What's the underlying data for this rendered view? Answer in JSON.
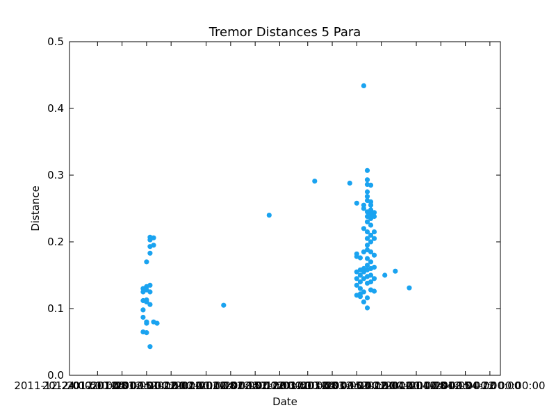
{
  "chart_data": {
    "type": "scatter",
    "title": "Tremor Distances 5 Para",
    "xlabel": "Date",
    "ylabel": "Distance",
    "ylim": [
      0,
      0.5
    ],
    "xlim": [
      "2011-12-24",
      "2012-04-25"
    ],
    "y_ticks": [
      "0.0",
      "0.1",
      "0.2",
      "0.3",
      "0.4",
      "0.5"
    ],
    "x_tick_labels": [
      "2011-12-24 00:00:00",
      "2012-01-01 00:00:00",
      "2012-01-08 00:00:00",
      "2012-01-15 00:00:00",
      "2012-01-22 00:00:00",
      "2012-02-01 00:00:00",
      "2012-02-08 00:00:00",
      "2012-02-15 00:00:00",
      "2012-02-22 00:00:00",
      "2012-03-01 00:00:00",
      "2012-03-08 00:00:00",
      "2012-03-15 00:00:00",
      "2012-03-22 00:00:00",
      "2012-04-01 00:00:00",
      "2012-04-08 00:00:00",
      "2012-04-15 00:00:00",
      "2012-04-22 00:00:00"
    ],
    "x_tick_dates": [
      "2011-12-24",
      "2012-01-01",
      "2012-01-08",
      "2012-01-15",
      "2012-01-22",
      "2012-02-01",
      "2012-02-08",
      "2012-02-15",
      "2012-02-22",
      "2012-03-01",
      "2012-03-08",
      "2012-03-15",
      "2012-03-22",
      "2012-04-01",
      "2012-04-08",
      "2012-04-15",
      "2012-04-22"
    ],
    "grid": false,
    "series": [
      {
        "color": "#1aa3f0",
        "points": [
          {
            "x": "2012-01-14",
            "y": 0.065
          },
          {
            "x": "2012-01-14",
            "y": 0.098
          },
          {
            "x": "2012-01-14",
            "y": 0.087
          },
          {
            "x": "2012-01-14",
            "y": 0.112
          },
          {
            "x": "2012-01-14",
            "y": 0.13
          },
          {
            "x": "2012-01-14",
            "y": 0.125
          },
          {
            "x": "2012-01-15",
            "y": 0.064
          },
          {
            "x": "2012-01-15",
            "y": 0.078
          },
          {
            "x": "2012-01-15",
            "y": 0.08
          },
          {
            "x": "2012-01-15",
            "y": 0.11
          },
          {
            "x": "2012-01-15",
            "y": 0.113
          },
          {
            "x": "2012-01-15",
            "y": 0.133
          },
          {
            "x": "2012-01-15",
            "y": 0.128
          },
          {
            "x": "2012-01-15",
            "y": 0.17
          },
          {
            "x": "2012-01-16",
            "y": 0.106
          },
          {
            "x": "2012-01-16",
            "y": 0.125
          },
          {
            "x": "2012-01-16",
            "y": 0.135
          },
          {
            "x": "2012-01-16",
            "y": 0.193
          },
          {
            "x": "2012-01-16",
            "y": 0.183
          },
          {
            "x": "2012-01-16",
            "y": 0.203
          },
          {
            "x": "2012-01-16",
            "y": 0.207
          },
          {
            "x": "2012-01-16",
            "y": 0.043
          },
          {
            "x": "2012-01-17",
            "y": 0.08
          },
          {
            "x": "2012-01-17",
            "y": 0.195
          },
          {
            "x": "2012-01-17",
            "y": 0.206
          },
          {
            "x": "2012-01-18",
            "y": 0.078
          },
          {
            "x": "2012-02-06",
            "y": 0.105
          },
          {
            "x": "2012-02-19",
            "y": 0.24
          },
          {
            "x": "2012-03-03",
            "y": 0.291
          },
          {
            "x": "2012-03-13",
            "y": 0.288
          },
          {
            "x": "2012-03-15",
            "y": 0.258
          },
          {
            "x": "2012-03-15",
            "y": 0.178
          },
          {
            "x": "2012-03-15",
            "y": 0.182
          },
          {
            "x": "2012-03-15",
            "y": 0.155
          },
          {
            "x": "2012-03-15",
            "y": 0.145
          },
          {
            "x": "2012-03-15",
            "y": 0.135
          },
          {
            "x": "2012-03-15",
            "y": 0.12
          },
          {
            "x": "2012-03-16",
            "y": 0.176
          },
          {
            "x": "2012-03-16",
            "y": 0.15
          },
          {
            "x": "2012-03-16",
            "y": 0.14
          },
          {
            "x": "2012-03-16",
            "y": 0.13
          },
          {
            "x": "2012-03-16",
            "y": 0.118
          },
          {
            "x": "2012-03-16",
            "y": 0.122
          },
          {
            "x": "2012-03-16",
            "y": 0.158
          },
          {
            "x": "2012-03-17",
            "y": 0.434
          },
          {
            "x": "2012-03-17",
            "y": 0.11
          },
          {
            "x": "2012-03-17",
            "y": 0.125
          },
          {
            "x": "2012-03-17",
            "y": 0.145
          },
          {
            "x": "2012-03-17",
            "y": 0.16
          },
          {
            "x": "2012-03-17",
            "y": 0.185
          },
          {
            "x": "2012-03-17",
            "y": 0.22
          },
          {
            "x": "2012-03-17",
            "y": 0.25
          },
          {
            "x": "2012-03-17",
            "y": 0.255
          },
          {
            "x": "2012-03-17",
            "y": 0.155
          },
          {
            "x": "2012-03-18",
            "y": 0.307
          },
          {
            "x": "2012-03-18",
            "y": 0.293
          },
          {
            "x": "2012-03-18",
            "y": 0.286
          },
          {
            "x": "2012-03-18",
            "y": 0.275
          },
          {
            "x": "2012-03-18",
            "y": 0.268
          },
          {
            "x": "2012-03-18",
            "y": 0.262
          },
          {
            "x": "2012-03-18",
            "y": 0.245
          },
          {
            "x": "2012-03-18",
            "y": 0.238
          },
          {
            "x": "2012-03-18",
            "y": 0.23
          },
          {
            "x": "2012-03-18",
            "y": 0.215
          },
          {
            "x": "2012-03-18",
            "y": 0.205
          },
          {
            "x": "2012-03-18",
            "y": 0.195
          },
          {
            "x": "2012-03-18",
            "y": 0.188
          },
          {
            "x": "2012-03-18",
            "y": 0.175
          },
          {
            "x": "2012-03-18",
            "y": 0.165
          },
          {
            "x": "2012-03-18",
            "y": 0.148
          },
          {
            "x": "2012-03-18",
            "y": 0.138
          },
          {
            "x": "2012-03-18",
            "y": 0.116
          },
          {
            "x": "2012-03-18",
            "y": 0.101
          },
          {
            "x": "2012-03-18",
            "y": 0.158
          },
          {
            "x": "2012-03-19",
            "y": 0.285
          },
          {
            "x": "2012-03-19",
            "y": 0.26
          },
          {
            "x": "2012-03-19",
            "y": 0.248
          },
          {
            "x": "2012-03-19",
            "y": 0.235
          },
          {
            "x": "2012-03-19",
            "y": 0.225
          },
          {
            "x": "2012-03-19",
            "y": 0.21
          },
          {
            "x": "2012-03-19",
            "y": 0.2
          },
          {
            "x": "2012-03-19",
            "y": 0.185
          },
          {
            "x": "2012-03-19",
            "y": 0.17
          },
          {
            "x": "2012-03-19",
            "y": 0.16
          },
          {
            "x": "2012-03-19",
            "y": 0.15
          },
          {
            "x": "2012-03-19",
            "y": 0.14
          },
          {
            "x": "2012-03-19",
            "y": 0.128
          },
          {
            "x": "2012-03-19",
            "y": 0.255
          },
          {
            "x": "2012-03-19",
            "y": 0.242
          },
          {
            "x": "2012-03-20",
            "y": 0.244
          },
          {
            "x": "2012-03-20",
            "y": 0.238
          },
          {
            "x": "2012-03-20",
            "y": 0.215
          },
          {
            "x": "2012-03-20",
            "y": 0.205
          },
          {
            "x": "2012-03-20",
            "y": 0.18
          },
          {
            "x": "2012-03-20",
            "y": 0.162
          },
          {
            "x": "2012-03-20",
            "y": 0.145
          },
          {
            "x": "2012-03-20",
            "y": 0.126
          },
          {
            "x": "2012-03-23",
            "y": 0.15
          },
          {
            "x": "2012-03-26",
            "y": 0.156
          },
          {
            "x": "2012-03-30",
            "y": 0.131
          }
        ]
      }
    ]
  }
}
